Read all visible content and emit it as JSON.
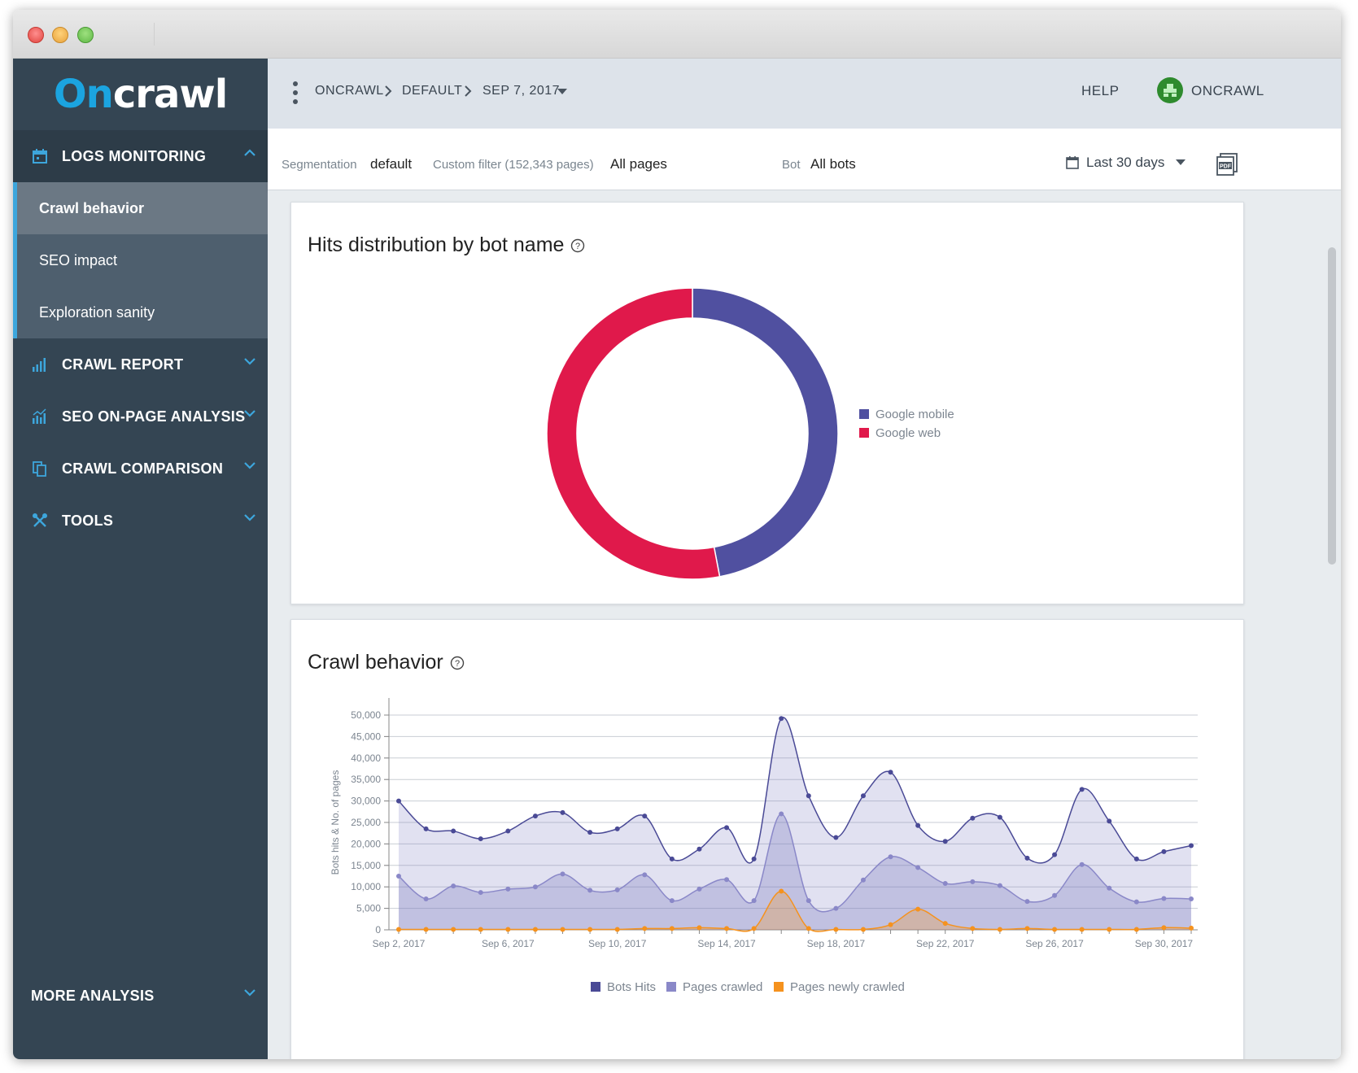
{
  "app": {
    "logo_on": "On",
    "logo_rest": "crawl"
  },
  "sidebar": {
    "logs_monitoring": "LOGS MONITORING",
    "sub_items": [
      "Crawl behavior",
      "SEO impact",
      "Exploration sanity"
    ],
    "crawl_report": "CRAWL REPORT",
    "seo_onpage": "SEO ON-PAGE ANALYSIS",
    "crawl_comparison": "CRAWL COMPARISON",
    "tools": "TOOLS",
    "more_analysis": "MORE ANALYSIS"
  },
  "topbar": {
    "crumbs": [
      "ONCRAWL",
      "DEFAULT",
      "SEP 7, 2017"
    ],
    "help": "HELP",
    "user": "ONCRAWL"
  },
  "filters": {
    "segmentation_label": "Segmentation",
    "segmentation_value": "default",
    "custom_filter_label": "Custom filter (152,343 pages)",
    "custom_filter_value": "All pages",
    "bot_label": "Bot",
    "bot_value": "All bots",
    "date_range": "Last 30 days"
  },
  "colors": {
    "google_mobile": "#5050a0",
    "google_web": "#e0194b",
    "bots_hits": "#4a4a96",
    "pages_crawled": "#8a88c8",
    "pages_newly_crawled": "#f5921e",
    "accent": "#1ba4e0"
  },
  "cards": {
    "donut_title": "Hits distribution by bot name",
    "line_title": "Crawl behavior"
  },
  "chart_data": [
    {
      "type": "pie",
      "title": "Hits distribution by bot name",
      "donut": true,
      "legend_position": "right",
      "series": [
        {
          "name": "Google mobile",
          "value": 47
        },
        {
          "name": "Google web",
          "value": 53
        }
      ]
    },
    {
      "type": "area",
      "title": "Crawl behavior",
      "ylabel": "Bots hits & No. of pages",
      "ylim": [
        0,
        50000
      ],
      "yticks": [
        0,
        5000,
        10000,
        15000,
        20000,
        25000,
        30000,
        35000,
        40000,
        45000,
        50000
      ],
      "ytick_labels": [
        "0",
        "5,000",
        "10,000",
        "15,000",
        "20,000",
        "25,000",
        "30,000",
        "35,000",
        "40,000",
        "45,000",
        "50,000"
      ],
      "grid": true,
      "legend_position": "bottom",
      "x": [
        "Sep 2, 2017",
        "Sep 3, 2017",
        "Sep 4, 2017",
        "Sep 5, 2017",
        "Sep 6, 2017",
        "Sep 7, 2017",
        "Sep 8, 2017",
        "Sep 9, 2017",
        "Sep 10, 2017",
        "Sep 11, 2017",
        "Sep 12, 2017",
        "Sep 13, 2017",
        "Sep 14, 2017",
        "Sep 15, 2017",
        "Sep 16, 2017",
        "Sep 17, 2017",
        "Sep 18, 2017",
        "Sep 19, 2017",
        "Sep 20, 2017",
        "Sep 21, 2017",
        "Sep 22, 2017",
        "Sep 23, 2017",
        "Sep 24, 2017",
        "Sep 25, 2017",
        "Sep 26, 2017",
        "Sep 27, 2017",
        "Sep 28, 2017",
        "Sep 29, 2017",
        "Sep 30, 2017",
        "Oct 1, 2017"
      ],
      "x_tick_labels": [
        "Sep 2, 2017",
        "Sep 6, 2017",
        "Sep 10, 2017",
        "Sep 14, 2017",
        "Sep 18, 2017",
        "Sep 22, 2017",
        "Sep 26, 2017",
        "Sep 30, 2017"
      ],
      "series": [
        {
          "name": "Bots Hits",
          "values": [
            30000,
            23500,
            23000,
            21200,
            23000,
            26500,
            27300,
            22700,
            23500,
            26500,
            16500,
            18800,
            23800,
            16500,
            49200,
            31200,
            21500,
            31200,
            36700,
            24300,
            20600,
            26000,
            26200,
            16700,
            17500,
            32700,
            25300,
            16500,
            18200,
            19600
          ]
        },
        {
          "name": "Pages crawled",
          "values": [
            12500,
            7200,
            10200,
            8700,
            9500,
            10000,
            13000,
            9200,
            9300,
            12800,
            6800,
            9500,
            11700,
            6800,
            27000,
            6800,
            5000,
            11600,
            17000,
            14500,
            10800,
            11200,
            10300,
            6600,
            8000,
            15200,
            9700,
            6500,
            7300,
            7200
          ]
        },
        {
          "name": "Pages newly crawled",
          "values": [
            100,
            100,
            100,
            100,
            100,
            100,
            100,
            100,
            100,
            300,
            300,
            500,
            300,
            300,
            9000,
            300,
            100,
            100,
            1200,
            4800,
            1500,
            300,
            100,
            300,
            100,
            100,
            100,
            100,
            500,
            400
          ]
        }
      ]
    }
  ]
}
